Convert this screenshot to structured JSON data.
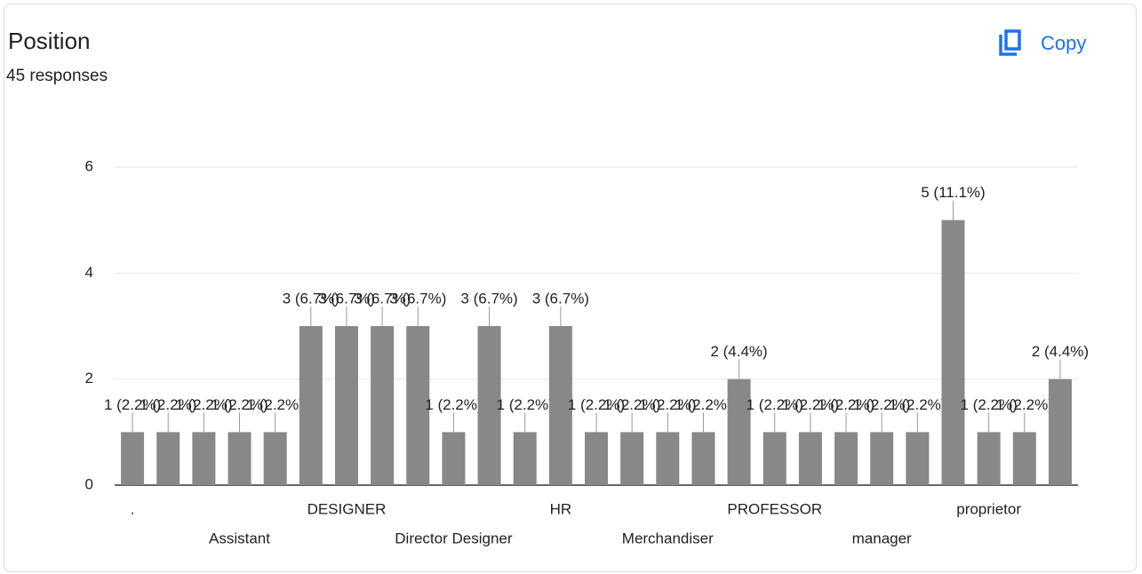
{
  "header": {
    "title": "Position",
    "subtitle": "45 responses",
    "copy_button": "Copy"
  },
  "chart_data": {
    "type": "bar",
    "color": "#888888",
    "grid": true,
    "categories": [
      ".",
      null,
      null,
      "Assistant",
      null,
      null,
      "DESIGNER",
      null,
      null,
      "Director Designer",
      null,
      null,
      "HR",
      null,
      null,
      "Merchandiser",
      null,
      null,
      "PROFESSOR",
      null,
      null,
      "manager",
      null,
      null,
      "proprietor",
      null,
      null
    ],
    "values": [
      1,
      1,
      1,
      1,
      1,
      3,
      3,
      3,
      3,
      1,
      3,
      1,
      3,
      1,
      1,
      1,
      1,
      2,
      1,
      1,
      1,
      1,
      1,
      5,
      1,
      1,
      2
    ],
    "value_labels": [
      "1 (2.2%)",
      "1 (2.2%)",
      "1 (2.2%)",
      "1 (2.2%)",
      "1 (2.2%)",
      "3 (6.7%)",
      "3 (6.7%)",
      "3 (6.7%)",
      "3 (6.7%)",
      "1 (2.2%)",
      "3 (6.7%)",
      "1 (2.2%)",
      "3 (6.7%)",
      "1 (2.2%)",
      "1 (2.2%)",
      "1 (2.2%)",
      "1 (2.2%)",
      "2 (4.4%)",
      "1 (2.2%)",
      "1 (2.2%)",
      "1 (2.2%)",
      "1 (2.2%)",
      "1 (2.2%)",
      "5 (11.1%)",
      "1 (2.2%)",
      "1 (2.2%)",
      "2 (4.4%)"
    ],
    "ylim": [
      0,
      6
    ],
    "yticks": [
      0,
      2,
      4,
      6
    ]
  }
}
